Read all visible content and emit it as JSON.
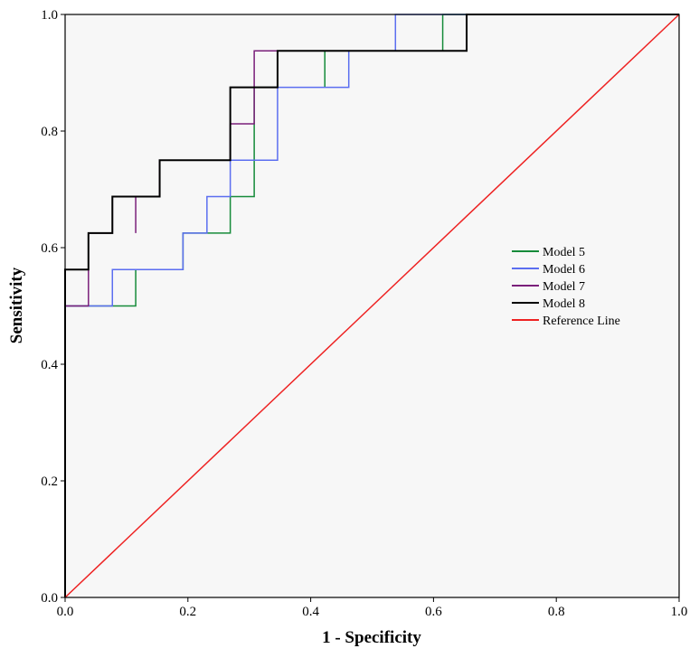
{
  "chart_data": {
    "type": "line",
    "title": "",
    "xlabel": "1 - Specificity",
    "ylabel": "Sensitivity",
    "xlim": [
      0,
      1
    ],
    "ylim": [
      0,
      1
    ],
    "xticks": [
      0.0,
      0.2,
      0.4,
      0.6,
      0.8,
      1.0
    ],
    "yticks": [
      0.0,
      0.2,
      0.4,
      0.6,
      0.8,
      1.0
    ],
    "xtick_labels": [
      "0.0",
      "0.2",
      "0.4",
      "0.6",
      "0.8",
      "1.0"
    ],
    "ytick_labels": [
      "0.0",
      "0.2",
      "0.4",
      "0.6",
      "0.8",
      "1.0"
    ],
    "grid": false,
    "legend_position": "right-middle",
    "plot_background": "#f7f7f7",
    "series": [
      {
        "name": "Model 5",
        "color": "#168b3a",
        "points": [
          [
            0,
            0
          ],
          [
            0,
            0.5
          ],
          [
            0.115,
            0.5
          ],
          [
            0.115,
            0.5625
          ],
          [
            0.192,
            0.5625
          ],
          [
            0.192,
            0.625
          ],
          [
            0.269,
            0.625
          ],
          [
            0.269,
            0.6875
          ],
          [
            0.308,
            0.6875
          ],
          [
            0.308,
            0.875
          ],
          [
            0.346,
            0.875
          ],
          [
            0.346,
            0.9375
          ],
          [
            0.423,
            0.9375
          ],
          [
            0.423,
            0.875
          ],
          [
            0.423,
            0.9375
          ],
          [
            0.615,
            0.9375
          ],
          [
            0.615,
            1.0
          ],
          [
            1.0,
            1.0
          ]
        ]
      },
      {
        "name": "Model 6",
        "color": "#5b6ef0",
        "points": [
          [
            0,
            0
          ],
          [
            0,
            0.5
          ],
          [
            0.077,
            0.5
          ],
          [
            0.077,
            0.5625
          ],
          [
            0.192,
            0.5625
          ],
          [
            0.192,
            0.625
          ],
          [
            0.231,
            0.625
          ],
          [
            0.231,
            0.6875
          ],
          [
            0.269,
            0.6875
          ],
          [
            0.269,
            0.75
          ],
          [
            0.346,
            0.75
          ],
          [
            0.346,
            0.875
          ],
          [
            0.462,
            0.875
          ],
          [
            0.462,
            0.9375
          ],
          [
            0.538,
            0.9375
          ],
          [
            0.538,
            1.0
          ],
          [
            1.0,
            1.0
          ]
        ]
      },
      {
        "name": "Model 7",
        "color": "#7a1f7a",
        "points": [
          [
            0,
            0
          ],
          [
            0,
            0.5
          ],
          [
            0.038,
            0.5
          ],
          [
            0.038,
            0.625
          ],
          [
            0.077,
            0.625
          ],
          [
            0.077,
            0.6875
          ],
          [
            0.115,
            0.6875
          ],
          [
            0.115,
            0.625
          ],
          [
            0.115,
            0.6875
          ],
          [
            0.154,
            0.6875
          ],
          [
            0.154,
            0.75
          ],
          [
            0.269,
            0.75
          ],
          [
            0.269,
            0.8125
          ],
          [
            0.308,
            0.8125
          ],
          [
            0.308,
            0.9375
          ],
          [
            0.654,
            0.9375
          ],
          [
            0.654,
            1.0
          ],
          [
            1.0,
            1.0
          ]
        ]
      },
      {
        "name": "Model 8",
        "color": "#000000",
        "points": [
          [
            0,
            0
          ],
          [
            0,
            0.5625
          ],
          [
            0.038,
            0.5625
          ],
          [
            0.038,
            0.625
          ],
          [
            0.077,
            0.625
          ],
          [
            0.077,
            0.6875
          ],
          [
            0.154,
            0.6875
          ],
          [
            0.154,
            0.75
          ],
          [
            0.269,
            0.75
          ],
          [
            0.269,
            0.875
          ],
          [
            0.346,
            0.875
          ],
          [
            0.346,
            0.9375
          ],
          [
            0.654,
            0.9375
          ],
          [
            0.654,
            1.0
          ],
          [
            1.0,
            1.0
          ]
        ]
      },
      {
        "name": "Reference Line",
        "color": "#ee2222",
        "points": [
          [
            0,
            0
          ],
          [
            1,
            1
          ]
        ]
      }
    ]
  }
}
